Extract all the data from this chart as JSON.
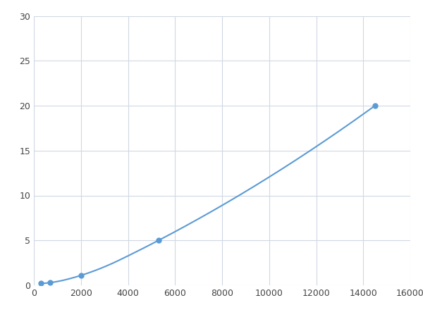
{
  "x": [
    300,
    700,
    2000,
    5300,
    14500
  ],
  "y": [
    0.2,
    0.3,
    1.1,
    5.0,
    20.0
  ],
  "line_color": "#5b9bd5",
  "marker_color": "#5b9bd5",
  "marker_size": 5,
  "linewidth": 1.5,
  "xlim": [
    0,
    16000
  ],
  "ylim": [
    0,
    30
  ],
  "xticks": [
    0,
    2000,
    4000,
    6000,
    8000,
    10000,
    12000,
    14000,
    16000
  ],
  "yticks": [
    0,
    5,
    10,
    15,
    20,
    25,
    30
  ],
  "grid_color": "#d0d8e4",
  "background_color": "#ffffff",
  "figsize": [
    6.0,
    4.5
  ],
  "dpi": 100
}
